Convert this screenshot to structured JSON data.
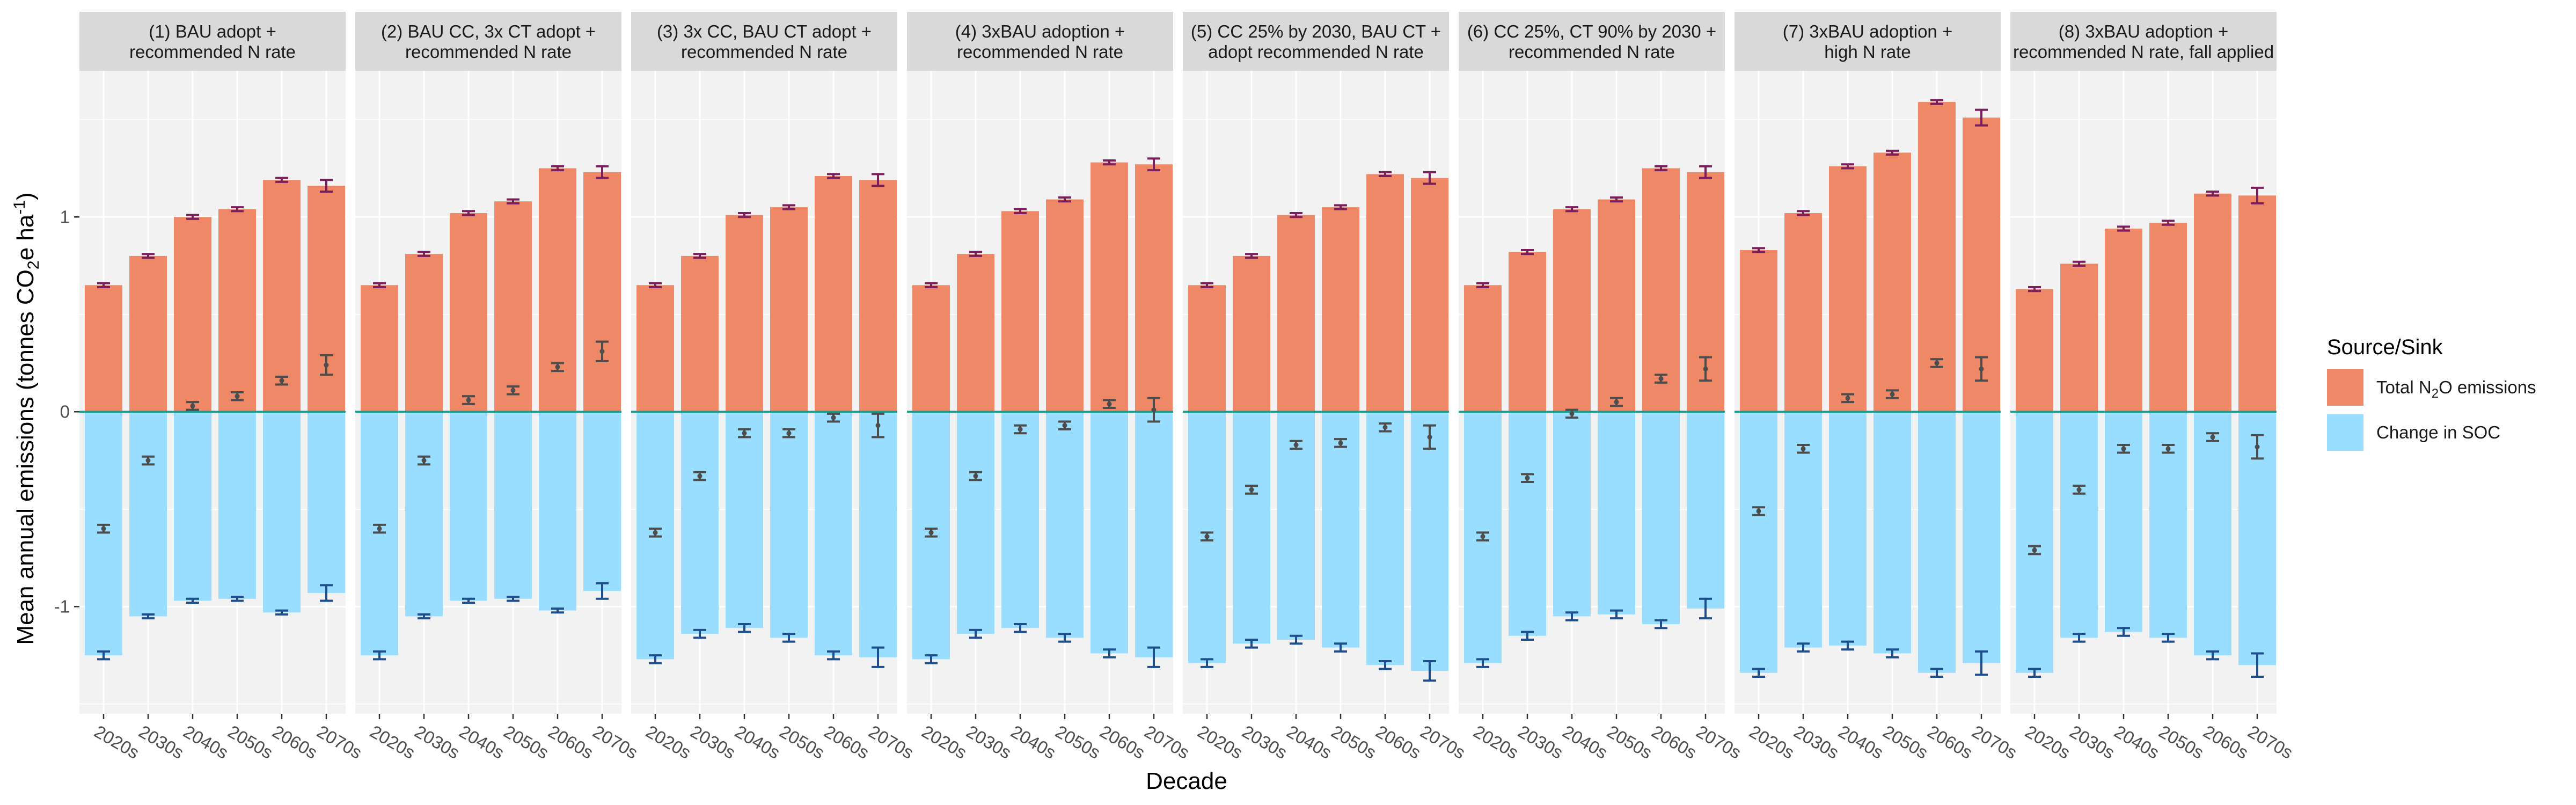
{
  "chart_data": {
    "type": "bar",
    "subtype": "faceted stacked bar with error bars",
    "xlabel": "Decade",
    "ylabel_parts": [
      "Mean annual emissions (tonnes CO",
      "2",
      "e ha",
      "-1",
      ")"
    ],
    "ylim": [
      -1.55,
      1.75
    ],
    "yticks": [
      -1,
      0,
      1
    ],
    "ytick_labels": [
      "-1",
      "0",
      "1"
    ],
    "categories": [
      "2020s",
      "2030s",
      "2040s",
      "2050s",
      "2060s",
      "2070s"
    ],
    "colors": {
      "n2o": "#EE8866",
      "soc": "#99DDFF",
      "zero_line": "#1a9c8c",
      "err_n2o": "#7a1f5c",
      "err_soc": "#1f4e8c",
      "err_net": "#4d4d4d",
      "panel_bg": "#F2F2F2",
      "strip_bg": "#D9D9D9"
    },
    "legend": {
      "title": "Source/Sink",
      "position": "right",
      "items": [
        {
          "key": "n2o",
          "label_parts": [
            "Total N",
            "2",
            "O emissions"
          ]
        },
        {
          "key": "soc",
          "label": "Change in SOC"
        }
      ]
    },
    "facets": [
      {
        "title_lines": [
          "(1) BAU adopt +",
          "recommended N rate"
        ],
        "n2o": [
          0.65,
          0.8,
          1.0,
          1.04,
          1.19,
          1.16
        ],
        "n2o_err": [
          0.01,
          0.01,
          0.01,
          0.01,
          0.01,
          0.03
        ],
        "soc": [
          -1.25,
          -1.05,
          -0.97,
          -0.96,
          -1.03,
          -0.93
        ],
        "soc_err": [
          0.02,
          0.01,
          0.01,
          0.01,
          0.01,
          0.04
        ],
        "net": [
          -0.6,
          -0.25,
          0.03,
          0.08,
          0.16,
          0.24
        ],
        "net_err": [
          0.02,
          0.02,
          0.02,
          0.02,
          0.02,
          0.05
        ]
      },
      {
        "title_lines": [
          "(2) BAU CC, 3x CT adopt +",
          "recommended N rate"
        ],
        "n2o": [
          0.65,
          0.81,
          1.02,
          1.08,
          1.25,
          1.23
        ],
        "n2o_err": [
          0.01,
          0.01,
          0.01,
          0.01,
          0.01,
          0.03
        ],
        "soc": [
          -1.25,
          -1.05,
          -0.97,
          -0.96,
          -1.02,
          -0.92
        ],
        "soc_err": [
          0.02,
          0.01,
          0.01,
          0.01,
          0.01,
          0.04
        ],
        "net": [
          -0.6,
          -0.25,
          0.06,
          0.11,
          0.23,
          0.31
        ],
        "net_err": [
          0.02,
          0.02,
          0.02,
          0.02,
          0.02,
          0.05
        ]
      },
      {
        "title_lines": [
          "(3) 3x CC, BAU CT adopt +",
          "recommended N rate"
        ],
        "n2o": [
          0.65,
          0.8,
          1.01,
          1.05,
          1.21,
          1.19
        ],
        "n2o_err": [
          0.01,
          0.01,
          0.01,
          0.01,
          0.01,
          0.03
        ],
        "soc": [
          -1.27,
          -1.14,
          -1.11,
          -1.16,
          -1.25,
          -1.26
        ],
        "soc_err": [
          0.02,
          0.02,
          0.02,
          0.02,
          0.02,
          0.05
        ],
        "net": [
          -0.62,
          -0.33,
          -0.11,
          -0.11,
          -0.03,
          -0.07
        ],
        "net_err": [
          0.02,
          0.02,
          0.02,
          0.02,
          0.02,
          0.06
        ]
      },
      {
        "title_lines": [
          "(4) 3xBAU adoption +",
          "recommended N rate"
        ],
        "n2o": [
          0.65,
          0.81,
          1.03,
          1.09,
          1.28,
          1.27
        ],
        "n2o_err": [
          0.01,
          0.01,
          0.01,
          0.01,
          0.01,
          0.03
        ],
        "soc": [
          -1.27,
          -1.14,
          -1.11,
          -1.16,
          -1.24,
          -1.26
        ],
        "soc_err": [
          0.02,
          0.02,
          0.02,
          0.02,
          0.02,
          0.05
        ],
        "net": [
          -0.62,
          -0.33,
          -0.09,
          -0.07,
          0.04,
          0.01
        ],
        "net_err": [
          0.02,
          0.02,
          0.02,
          0.02,
          0.02,
          0.06
        ]
      },
      {
        "title_lines": [
          "(5) CC 25% by 2030, BAU CT +",
          "adopt recommended N rate"
        ],
        "n2o": [
          0.65,
          0.8,
          1.01,
          1.05,
          1.22,
          1.2
        ],
        "n2o_err": [
          0.01,
          0.01,
          0.01,
          0.01,
          0.01,
          0.03
        ],
        "soc": [
          -1.29,
          -1.19,
          -1.17,
          -1.21,
          -1.3,
          -1.33
        ],
        "soc_err": [
          0.02,
          0.02,
          0.02,
          0.02,
          0.02,
          0.05
        ],
        "net": [
          -0.64,
          -0.4,
          -0.17,
          -0.16,
          -0.08,
          -0.13
        ],
        "net_err": [
          0.02,
          0.02,
          0.02,
          0.02,
          0.02,
          0.06
        ]
      },
      {
        "title_lines": [
          "(6) CC 25%, CT 90% by 2030 +",
          "recommended N rate"
        ],
        "n2o": [
          0.65,
          0.82,
          1.04,
          1.09,
          1.25,
          1.23
        ],
        "n2o_err": [
          0.01,
          0.01,
          0.01,
          0.01,
          0.01,
          0.03
        ],
        "soc": [
          -1.29,
          -1.15,
          -1.05,
          -1.04,
          -1.09,
          -1.01
        ],
        "soc_err": [
          0.02,
          0.02,
          0.02,
          0.02,
          0.02,
          0.05
        ],
        "net": [
          -0.64,
          -0.34,
          -0.01,
          0.05,
          0.17,
          0.22
        ],
        "net_err": [
          0.02,
          0.02,
          0.02,
          0.02,
          0.02,
          0.06
        ]
      },
      {
        "title_lines": [
          "(7) 3xBAU adoption +",
          "high N rate"
        ],
        "n2o": [
          0.83,
          1.02,
          1.26,
          1.33,
          1.59,
          1.51
        ],
        "n2o_err": [
          0.01,
          0.01,
          0.01,
          0.01,
          0.01,
          0.04
        ],
        "soc": [
          -1.34,
          -1.21,
          -1.2,
          -1.24,
          -1.34,
          -1.29
        ],
        "soc_err": [
          0.02,
          0.02,
          0.02,
          0.02,
          0.02,
          0.06
        ],
        "net": [
          -0.51,
          -0.19,
          0.07,
          0.09,
          0.25,
          0.22
        ],
        "net_err": [
          0.02,
          0.02,
          0.02,
          0.02,
          0.02,
          0.06
        ]
      },
      {
        "title_lines": [
          "(8) 3xBAU adoption +",
          "recommended N rate, fall applied"
        ],
        "n2o": [
          0.63,
          0.76,
          0.94,
          0.97,
          1.12,
          1.11
        ],
        "n2o_err": [
          0.01,
          0.01,
          0.01,
          0.01,
          0.01,
          0.04
        ],
        "soc": [
          -1.34,
          -1.16,
          -1.13,
          -1.16,
          -1.25,
          -1.3
        ],
        "soc_err": [
          0.02,
          0.02,
          0.02,
          0.02,
          0.02,
          0.06
        ],
        "net": [
          -0.71,
          -0.4,
          -0.19,
          -0.19,
          -0.13,
          -0.18
        ],
        "net_err": [
          0.02,
          0.02,
          0.02,
          0.02,
          0.02,
          0.06
        ]
      }
    ]
  }
}
